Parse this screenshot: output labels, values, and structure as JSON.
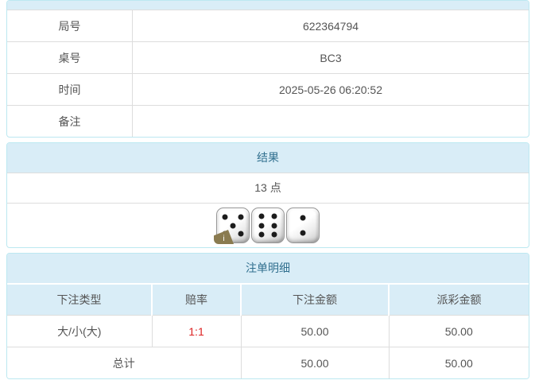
{
  "theme": {
    "page_bg": "#ffffff",
    "panel_border": "#bce8f1",
    "heading_bg": "#d9edf7",
    "heading_text": "#31708f",
    "cell_border": "#dddddd",
    "body_text": "#555555",
    "odds_color": "#dd2222",
    "badge_bg": "#8a7b50"
  },
  "game_info": {
    "rows": [
      {
        "label": "局号",
        "value": "622364794"
      },
      {
        "label": "桌号",
        "value": "BC3"
      },
      {
        "label": "时间",
        "value": "2025-05-26 06:20:52"
      },
      {
        "label": "备注",
        "value": ""
      }
    ]
  },
  "result": {
    "heading": "结果",
    "points": "13 点",
    "dice": [
      5,
      6,
      2
    ],
    "info_badge": "i"
  },
  "bets": {
    "heading": "注单明细",
    "columns": [
      "下注类型",
      "赔率",
      "下注金额",
      "派彩金额"
    ],
    "rows": [
      {
        "type": "大/小(大)",
        "odds": "1:1",
        "bet": "50.00",
        "payout": "50.00"
      }
    ],
    "total": {
      "label": "总计",
      "bet": "50.00",
      "payout": "50.00"
    }
  }
}
